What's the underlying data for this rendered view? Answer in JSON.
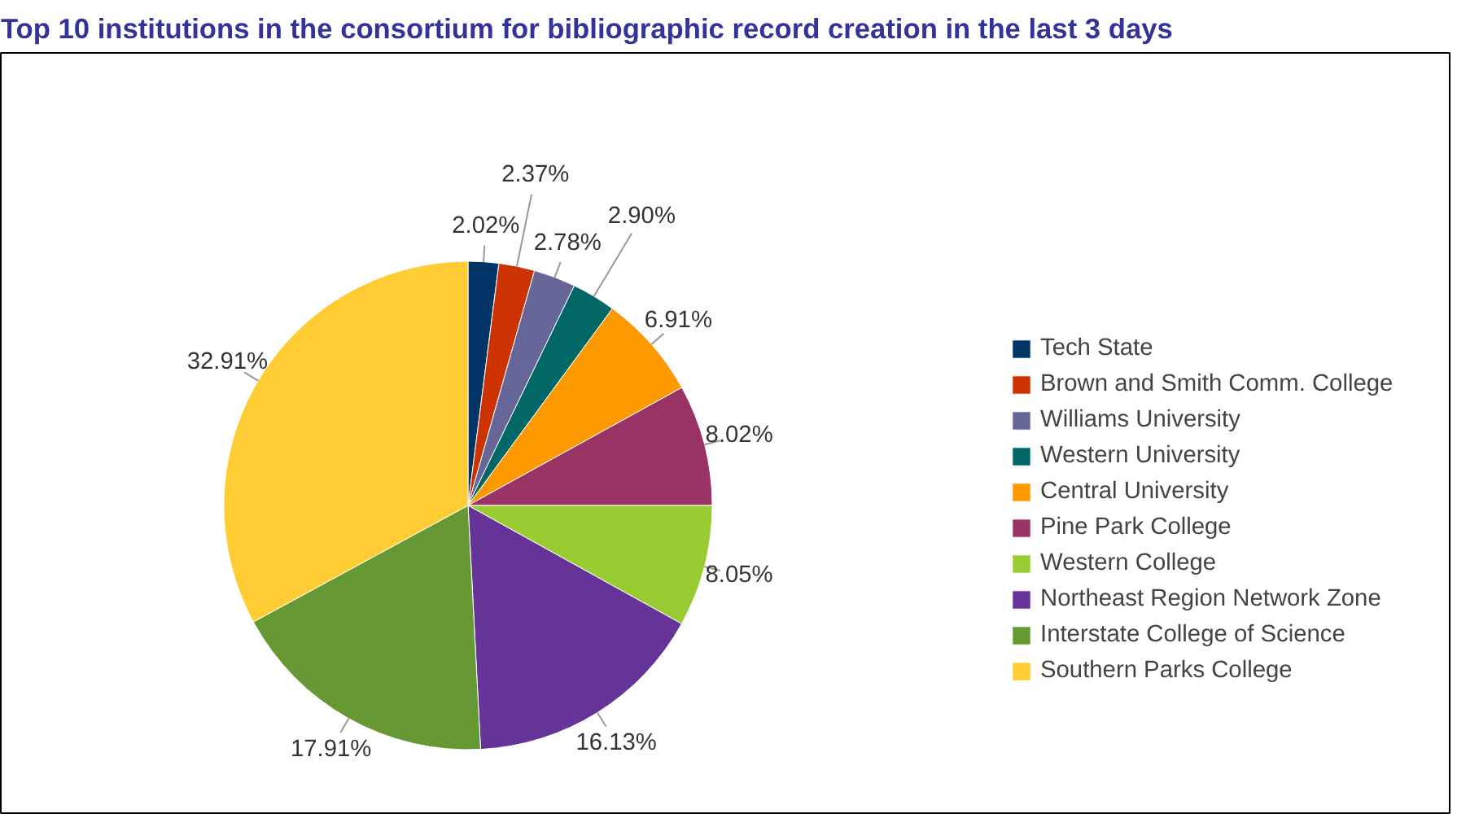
{
  "chart_data": {
    "type": "pie",
    "title": "Top 10 institutions in the consortium for bibliographic record creation in the last 3 days",
    "categories": [
      "Tech State",
      "Brown and Smith Comm. College",
      "Williams University",
      "Western University",
      "Central University",
      "Pine Park College",
      "Western College",
      "Northeast Region Network Zone",
      "Interstate College of Science",
      "Southern Parks College"
    ],
    "values": [
      2.02,
      2.37,
      2.78,
      2.9,
      6.91,
      8.02,
      8.05,
      16.13,
      17.91,
      32.91
    ],
    "value_labels": [
      "2.02%",
      "2.37%",
      "2.78%",
      "2.90%",
      "6.91%",
      "8.02%",
      "8.05%",
      "16.13%",
      "17.91%",
      "32.91%"
    ],
    "colors": [
      "#003366",
      "#cc3300",
      "#666699",
      "#006666",
      "#ff9900",
      "#993366",
      "#99cc33",
      "#663399",
      "#669933",
      "#ffcc33"
    ],
    "legend": "right"
  }
}
